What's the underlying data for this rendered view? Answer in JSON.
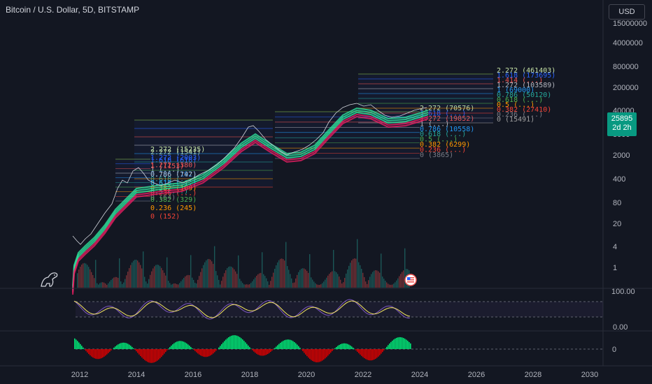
{
  "header": {
    "title": "Bitcoin / U.S. Dollar, 5D, BITSTAMP",
    "currency": "USD"
  },
  "price_badge": {
    "price": "25895",
    "countdown": "2d 2h"
  },
  "price_axis": [
    "15000000",
    "4000000",
    "800000",
    "200000",
    "40000",
    "8000",
    "2000",
    "400",
    "80",
    "20",
    "4",
    "1"
  ],
  "rsi_axis": [
    "100.00",
    "0.00"
  ],
  "macd_axis": [
    "0"
  ],
  "time_axis": [
    "2012",
    "2014",
    "2016",
    "2018",
    "2020",
    "2022",
    "2024",
    "2026",
    "2028",
    "2030"
  ],
  "colors": {
    "background": "#131722",
    "up": "#26a69a",
    "down": "#ef5350",
    "ribbon": "#2ee59d",
    "rsi": "#7e57c2",
    "rsi_ma": "#f5e663",
    "badge": "#089981"
  },
  "fib_sets": [
    {
      "name": "cycle-2013",
      "labels": [
        "2.272 (1541)",
        "1.618 (616)",
        "1.272 (380)",
        "1 (...)",
        "0.786 (192)",
        "0.618 (...)",
        "0.5 (...)",
        "0.382 (109)",
        "0.236 (...)",
        "0 (64)"
      ]
    },
    {
      "name": "cycle-2017",
      "labels": [
        "2.272 (15235)",
        "1.272 (2003)",
        "1 (1153)",
        "0.786 (747)",
        "0.618 (...)",
        "0.5 (...)",
        "0.382 (329)",
        "0.236 (245)",
        "0 (152)"
      ]
    },
    {
      "name": "cycle-2021",
      "labels": [
        "2.272 (70576)",
        "1.618 (...)",
        "1.272 (19852)",
        "1 (...)",
        "0.786 (10558)",
        "0.618 (...)",
        "0.5 (...)",
        "0.382 (6299)",
        "0.236 (...)",
        "0 (3865)"
      ]
    },
    {
      "name": "cycle-2024",
      "labels": [
        "2.272 (461403)",
        "1.618 (173695)",
        "1.414 (...)",
        "1.272 (103589)",
        "1 (69000)",
        "0.786 (50120)",
        "0.618 (...)",
        "0.5 (...)",
        "0.382 (27410)",
        "0.236 (...)",
        "0 (15491)"
      ]
    }
  ],
  "icons": {
    "logo": "dino-icon",
    "event": "us-flag-icon"
  }
}
